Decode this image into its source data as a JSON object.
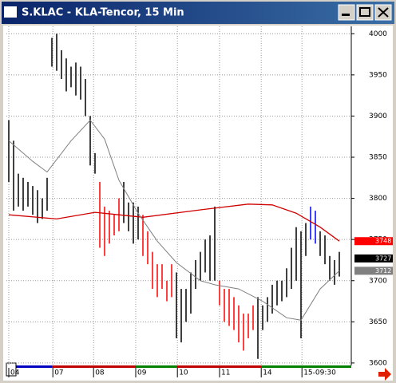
{
  "chart_data": {
    "type": "ohlc",
    "title": "S.KLAC - KLA-Tencor, 15 Min",
    "xlim": [
      -0.5,
      71.5
    ],
    "xticks": [
      {
        "value": 0,
        "label": "04"
      },
      {
        "value": 9.2,
        "label": "07"
      },
      {
        "value": 17.7,
        "label": "08"
      },
      {
        "value": 26.5,
        "label": "09"
      },
      {
        "value": 35.2,
        "label": "10"
      },
      {
        "value": 44,
        "label": "11"
      },
      {
        "value": 52.7,
        "label": "14"
      },
      {
        "value": 61.2,
        "label": "15-09:30"
      }
    ],
    "ylim": [
      3597,
      4009
    ],
    "yticks": [
      3600,
      3650,
      3700,
      3750,
      3800,
      3850,
      3900,
      3950,
      4000
    ],
    "grid": true,
    "bars": {
      "high": [
        3895,
        3870,
        3830,
        3825,
        3820,
        3815,
        3810,
        3800,
        3825,
        3995,
        4000,
        3980,
        3970,
        3960,
        3965,
        3960,
        3945,
        3900,
        3855,
        3820,
        3790,
        3785,
        3780,
        3800,
        3820,
        3795,
        3795,
        3790,
        3780,
        3760,
        3735,
        3720,
        3720,
        3700,
        3720,
        3710,
        3690,
        3690,
        3710,
        3725,
        3735,
        3750,
        3755,
        3790,
        3700,
        3690,
        3690,
        3680,
        3670,
        3660,
        3660,
        3670,
        3680,
        3670,
        3680,
        3695,
        3700,
        3700,
        3715,
        3740,
        3765,
        3760,
        3770,
        3790,
        3785,
        3760,
        3755,
        3730,
        3725,
        3735
      ],
      "low": [
        3820,
        3785,
        3790,
        3785,
        3790,
        3780,
        3770,
        3775,
        3785,
        3960,
        3955,
        3945,
        3930,
        3935,
        3925,
        3920,
        3900,
        3840,
        3830,
        3740,
        3730,
        3745,
        3755,
        3760,
        3770,
        3760,
        3745,
        3750,
        3730,
        3720,
        3690,
        3680,
        3690,
        3675,
        3680,
        3630,
        3625,
        3650,
        3660,
        3690,
        3700,
        3710,
        3700,
        3700,
        3670,
        3650,
        3645,
        3640,
        3625,
        3615,
        3630,
        3640,
        3605,
        3640,
        3650,
        3660,
        3670,
        3675,
        3680,
        3690,
        3700,
        3630,
        3730,
        3750,
        3745,
        3730,
        3720,
        3700,
        3695,
        3705
      ],
      "colors": [
        "#000",
        "#000",
        "#000",
        "#000",
        "#000",
        "#000",
        "#000",
        "#000",
        "#000",
        "#000",
        "#000",
        "#000",
        "#000",
        "#000",
        "#000",
        "#000",
        "#000",
        "#000",
        "#000",
        "#f00",
        "#f00",
        "#f00",
        "#f00",
        "#f00",
        "#000",
        "#000",
        "#000",
        "#000",
        "#f00",
        "#f00",
        "#f00",
        "#f00",
        "#f00",
        "#f00",
        "#f00",
        "#000",
        "#000",
        "#000",
        "#000",
        "#000",
        "#000",
        "#000",
        "#000",
        "#000",
        "#f00",
        "#f00",
        "#f00",
        "#f00",
        "#f00",
        "#f00",
        "#f00",
        "#f00",
        "#000",
        "#000",
        "#000",
        "#000",
        "#000",
        "#000",
        "#000",
        "#000",
        "#000",
        "#000",
        "#000",
        "#00f",
        "#00f",
        "#000",
        "#000",
        "#000",
        "#000",
        "#000"
      ]
    },
    "lines": [
      {
        "color": "#d00000",
        "x": [
          0,
          10,
          18,
          28,
          40,
          50,
          55,
          60,
          65,
          69
        ],
        "values": [
          3780,
          3775,
          3783,
          3777,
          3786,
          3793,
          3792,
          3782,
          3765,
          3748
        ]
      },
      {
        "color": "#808080",
        "x": [
          0,
          5,
          8,
          13,
          17,
          20,
          23,
          27,
          31,
          35,
          40,
          43,
          48,
          53,
          58,
          61,
          65,
          69
        ],
        "values": [
          3870,
          3845,
          3832,
          3870,
          3895,
          3872,
          3822,
          3782,
          3748,
          3722,
          3700,
          3695,
          3690,
          3675,
          3655,
          3652,
          3690,
          3712
        ]
      }
    ],
    "price_tags": [
      {
        "value": 3748,
        "color": "#ff0000"
      },
      {
        "value": 3727,
        "color": "#000000"
      },
      {
        "value": 3712,
        "color": "#808080"
      }
    ]
  }
}
